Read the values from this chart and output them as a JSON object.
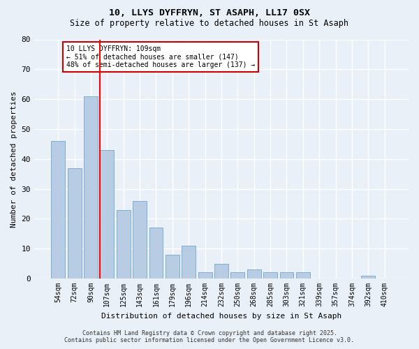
{
  "title1": "10, LLYS DYFFRYN, ST ASAPH, LL17 0SX",
  "title2": "Size of property relative to detached houses in St Asaph",
  "xlabel": "Distribution of detached houses by size in St Asaph",
  "ylabel": "Number of detached properties",
  "categories": [
    "54sqm",
    "72sqm",
    "90sqm",
    "107sqm",
    "125sqm",
    "143sqm",
    "161sqm",
    "179sqm",
    "196sqm",
    "214sqm",
    "232sqm",
    "250sqm",
    "268sqm",
    "285sqm",
    "303sqm",
    "321sqm",
    "339sqm",
    "357sqm",
    "374sqm",
    "392sqm",
    "410sqm"
  ],
  "values": [
    46,
    37,
    61,
    43,
    23,
    26,
    17,
    8,
    11,
    2,
    5,
    2,
    3,
    2,
    2,
    2,
    0,
    0,
    0,
    1,
    0
  ],
  "bar_color": "#b8cce4",
  "bar_edge_color": "#7bafd4",
  "background_color": "#eaf0f8",
  "grid_color": "#ffffff",
  "red_line_index": 3,
  "annotation_text": "10 LLYS DYFFRYN: 109sqm\n← 51% of detached houses are smaller (147)\n48% of semi-detached houses are larger (137) →",
  "annotation_box_color": "#ffffff",
  "annotation_box_edge": "#cc0000",
  "footnote": "Contains HM Land Registry data © Crown copyright and database right 2025.\nContains public sector information licensed under the Open Government Licence v3.0.",
  "ylim": [
    0,
    80
  ],
  "yticks": [
    0,
    10,
    20,
    30,
    40,
    50,
    60,
    70,
    80
  ]
}
